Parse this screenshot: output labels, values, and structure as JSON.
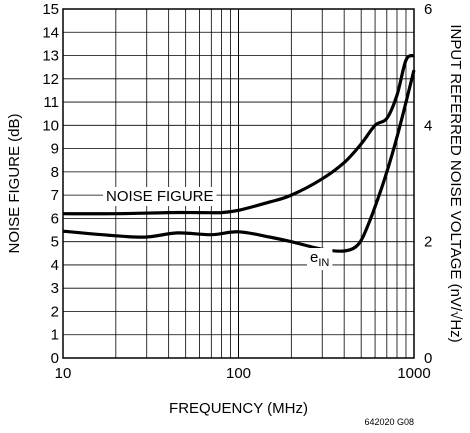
{
  "chart_data": {
    "type": "line",
    "x_scale": "log",
    "xlim": [
      10,
      1000
    ],
    "ylim_left": [
      0,
      15
    ],
    "ylim_right": [
      0,
      6
    ],
    "grid": true,
    "xlabel": "FREQUENCY (MHz)",
    "ylabel_left": "NOISE FIGURE (dB)",
    "ylabel_right": "INPUT REFERRED NOISE VOLTAGE (nV/√Hz)",
    "x_ticks": [
      "10",
      "100",
      "1000"
    ],
    "y_ticks_left": [
      "0",
      "1",
      "2",
      "3",
      "4",
      "5",
      "6",
      "7",
      "8",
      "9",
      "10",
      "11",
      "12",
      "13",
      "14",
      "15"
    ],
    "y_ticks_right": [
      "0",
      "2",
      "4",
      "6"
    ],
    "figure_code": "642020 G08",
    "series": [
      {
        "name": "NOISE FIGURE",
        "axis": "left",
        "unit": "dB",
        "x": [
          10,
          20,
          40,
          60,
          80,
          100,
          150,
          200,
          300,
          400,
          500,
          600,
          700,
          800,
          900,
          1000
        ],
        "y": [
          6.2,
          6.2,
          6.25,
          6.25,
          6.25,
          6.35,
          6.7,
          7.0,
          7.7,
          8.4,
          9.2,
          10.0,
          10.3,
          11.3,
          12.8,
          13.0
        ]
      },
      {
        "name_main": "e",
        "name_sub": "IN",
        "axis": "right",
        "unit": "nV/√Hz",
        "x": [
          10,
          20,
          30,
          45,
          70,
          100,
          150,
          200,
          300,
          400,
          480,
          550,
          650,
          750,
          850,
          1000
        ],
        "y": [
          2.18,
          2.1,
          2.08,
          2.15,
          2.12,
          2.17,
          2.08,
          2.0,
          1.87,
          1.84,
          1.95,
          2.3,
          2.9,
          3.5,
          4.1,
          4.95
        ]
      }
    ]
  }
}
